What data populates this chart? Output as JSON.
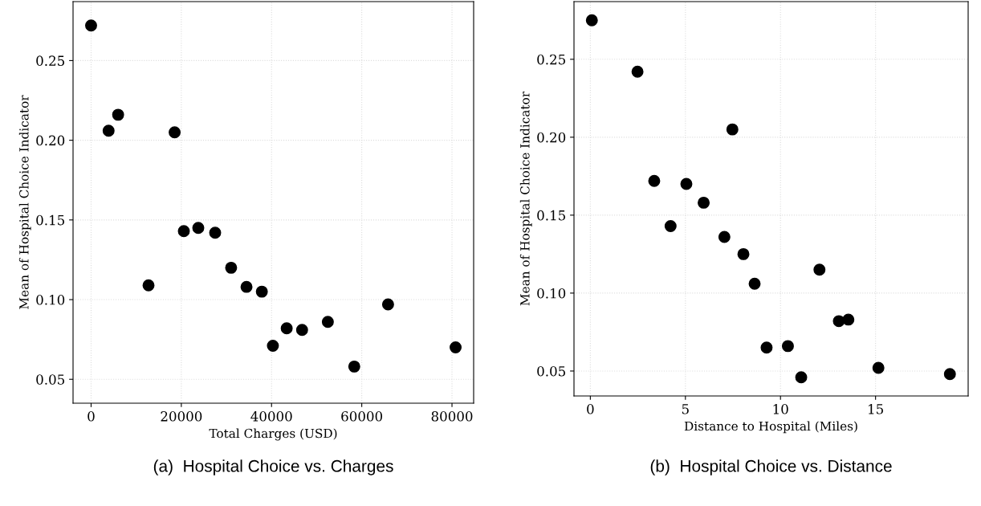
{
  "chart_data": [
    {
      "type": "scatter",
      "xlabel": "Total Charges (USD)",
      "ylabel": "Mean of Hospital Choice Indicator",
      "annotations": [
        "(a)  Hospital Choice vs. Charges"
      ],
      "marker": "circle",
      "grid": true,
      "x": [
        0,
        3880,
        5990,
        12730,
        18520,
        20560,
        23760,
        27500,
        31040,
        34450,
        37850,
        40300,
        43360,
        46770,
        52480,
        58340,
        65830,
        80800
      ],
      "series": [
        {
          "color": "#000000",
          "values": [
            0.272,
            0.206,
            0.216,
            0.109,
            0.205,
            0.143,
            0.145,
            0.142,
            0.12,
            0.108,
            0.105,
            0.071,
            0.082,
            0.081,
            0.086,
            0.058,
            0.097,
            0.07
          ]
        }
      ],
      "xlim": [
        -4000,
        84800
      ],
      "xticks": [
        0,
        20000,
        40000,
        60000,
        80000
      ],
      "ylim": [
        0.035,
        0.287
      ],
      "yticks": [
        {
          "value": 0.05,
          "label": "0.05"
        },
        {
          "value": 0.1,
          "label": "0.10"
        },
        {
          "value": 0.15,
          "label": "0.15"
        },
        {
          "value": 0.2,
          "label": "0.20"
        },
        {
          "value": 0.25,
          "label": "0.25"
        }
      ]
    },
    {
      "type": "scatter",
      "xlabel": "Distance to Hospital (Miles)",
      "ylabel": "Mean of Hospital Choice Indicator",
      "annotations": [
        "(b)  Hospital Choice vs. Distance"
      ],
      "marker": "circle",
      "grid": true,
      "x": [
        0.08,
        2.48,
        3.36,
        4.22,
        5.05,
        5.96,
        7.47,
        7.05,
        8.05,
        8.64,
        9.27,
        10.39,
        11.09,
        12.05,
        13.07,
        13.57,
        15.15,
        18.91
      ],
      "series": [
        {
          "color": "#000000",
          "values": [
            0.275,
            0.242,
            0.172,
            0.143,
            0.17,
            0.158,
            0.205,
            0.136,
            0.125,
            0.106,
            0.065,
            0.066,
            0.046,
            0.115,
            0.082,
            0.083,
            0.052,
            0.048
          ]
        }
      ],
      "xlim": [
        -0.86,
        19.87
      ],
      "xticks": [
        0,
        5,
        10,
        15
      ],
      "ylim": [
        0.034,
        0.287
      ],
      "yticks": [
        {
          "value": 0.05,
          "label": "0.05"
        },
        {
          "value": 0.1,
          "label": "0.10"
        },
        {
          "value": 0.15,
          "label": "0.15"
        },
        {
          "value": 0.2,
          "label": "0.20"
        },
        {
          "value": 0.25,
          "label": "0.25"
        }
      ]
    }
  ]
}
